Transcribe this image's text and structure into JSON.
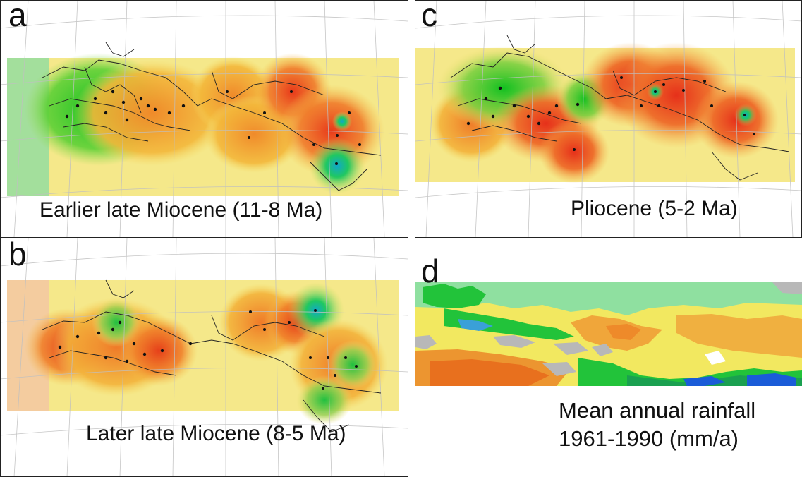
{
  "panels": [
    {
      "letter": "a",
      "caption": "Earlier late Miocene (11-8 Ma)"
    },
    {
      "letter": "b",
      "caption": "Later late Miocene (8-5 Ma)"
    },
    {
      "letter": "c",
      "caption": "Pliocene (5-2 Ma)"
    },
    {
      "letter": "d",
      "caption_line1": "Mean annual rainfall",
      "caption_line2": "1961-1990 (mm/a)"
    }
  ],
  "colors": {
    "wet": "#22c33a",
    "moderate": "#f2e860",
    "dry": "#e8531c",
    "very_wet": "#1a5cd8",
    "no_data": "#b8b8b8"
  }
}
